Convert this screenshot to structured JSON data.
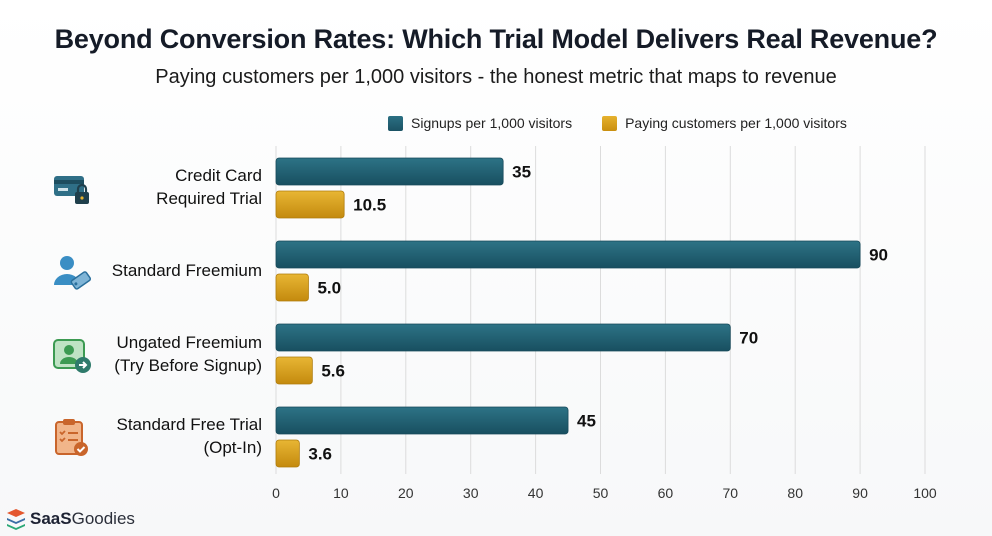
{
  "title": "Beyond Conversion Rates: Which Trial Model Delivers Real Revenue?",
  "subtitle": "Paying customers per 1,000 visitors - the honest metric that maps to revenue",
  "brand": {
    "name_bold": "SaaS",
    "name_rest": "Goodies",
    "icon": "stack-logo-icon"
  },
  "colors": {
    "teal": "#1f5f73",
    "gold": "#d9a01c",
    "grid": "#dcdcdc"
  },
  "chart_data": {
    "type": "bar",
    "orientation": "horizontal",
    "title": "Beyond Conversion Rates: Which Trial Model Delivers Real Revenue?",
    "subtitle": "Paying customers per 1,000 visitors - the honest metric that maps to revenue",
    "categories": [
      [
        "Credit Card",
        "Required Trial"
      ],
      [
        "Standard Freemium"
      ],
      [
        "Ungated Freemium",
        "(Try Before Signup)"
      ],
      [
        "Standard Free Trial",
        "(Opt-In)"
      ]
    ],
    "category_icons": [
      "credit-card-lock-icon",
      "user-tag-icon",
      "user-arrow-icon",
      "clipboard-check-icon"
    ],
    "series": [
      {
        "name": "Signups per 1,000 visitors",
        "color": "#1f5f73",
        "values": [
          35,
          90,
          70,
          45
        ],
        "labels": [
          "35",
          "90",
          "70",
          "45"
        ]
      },
      {
        "name": "Paying customers per 1,000 visitors",
        "color": "#d9a01c",
        "values": [
          10.5,
          5.0,
          5.6,
          3.6
        ],
        "labels": [
          "10.5",
          "5.0",
          "5.6",
          "3.6"
        ]
      }
    ],
    "xlim": [
      0,
      100
    ],
    "xticks": [
      "0",
      "10",
      "20",
      "30",
      "40",
      "50",
      "60",
      "70",
      "80",
      "90",
      "100"
    ],
    "xlabel": "",
    "ylabel": "",
    "grid": "vertical",
    "legend_position": "top"
  }
}
